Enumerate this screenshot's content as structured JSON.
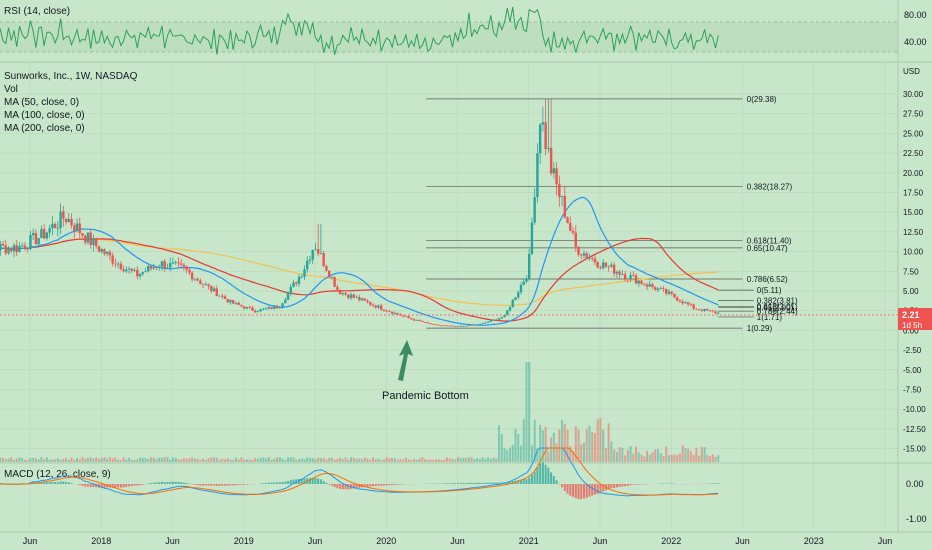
{
  "colors": {
    "background": "#c8e6c9",
    "bull": "#26a69a",
    "bear": "#ef5350",
    "ma50": "#2196f3",
    "ma100": "#e53935",
    "ma200": "#f6c04f",
    "rsi": "#2e9f5b",
    "macd": "#2196f3",
    "signal": "#ff6d00",
    "arrow": "#3d8b63",
    "grid": "#b4d6b6",
    "text": "#131722",
    "fib": "#555555"
  },
  "rsi_panel": {
    "label": "RSI (14, close)",
    "axis_ticks": [
      "80.00",
      "40.00"
    ]
  },
  "main_panel": {
    "legend": [
      "Sunworks, Inc., 1W, NASDAQ",
      "Vol",
      "MA (50, close, 0)",
      "MA (100, close, 0)",
      "MA (200, close, 0)"
    ],
    "currency": "USD",
    "last_price": "2.21",
    "countdown": "1d 5h",
    "annotation": "Pandemic Bottom"
  },
  "macd_panel": {
    "label": "MACD (12, 26, close, 9)",
    "axis_ticks": [
      "0.00",
      "-1.00"
    ]
  },
  "chart_data": {
    "type": "candlestick",
    "symbol": "Sunworks, Inc., 1W, NASDAQ",
    "x_ticks": [
      "Jun",
      "2018",
      "Jun",
      "2019",
      "Jun",
      "2020",
      "Jun",
      "2021",
      "Jun",
      "2022",
      "Jun",
      "2023",
      "Jun"
    ],
    "y_ticks": [
      "30.00",
      "27.50",
      "25.00",
      "22.50",
      "20.00",
      "17.50",
      "15.00",
      "12.50",
      "10.00",
      "7.50",
      "5.00",
      "2.50",
      "0.00",
      "-2.50",
      "-5.00",
      "-7.50",
      "-10.00",
      "-12.50",
      "-15.00"
    ],
    "price_series": [
      {
        "date": "2017-05",
        "close": 10.5
      },
      {
        "date": "2017-07",
        "close": 12.0
      },
      {
        "date": "2017-09",
        "close": 14.5
      },
      {
        "date": "2017-11",
        "close": 11.5
      },
      {
        "date": "2018-01",
        "close": 9.0
      },
      {
        "date": "2018-03",
        "close": 7.0
      },
      {
        "date": "2018-05",
        "close": 8.5
      },
      {
        "date": "2018-07",
        "close": 7.8
      },
      {
        "date": "2018-09",
        "close": 5.5
      },
      {
        "date": "2018-11",
        "close": 3.5
      },
      {
        "date": "2019-01",
        "close": 2.5
      },
      {
        "date": "2019-03",
        "close": 3.0
      },
      {
        "date": "2019-05",
        "close": 7.5
      },
      {
        "date": "2019-06",
        "close": 11.0
      },
      {
        "date": "2019-08",
        "close": 5.0
      },
      {
        "date": "2019-10",
        "close": 3.8
      },
      {
        "date": "2019-12",
        "close": 2.6
      },
      {
        "date": "2020-02",
        "close": 1.5
      },
      {
        "date": "2020-04",
        "close": 0.7
      },
      {
        "date": "2020-06",
        "close": 0.5
      },
      {
        "date": "2020-08",
        "close": 0.8
      },
      {
        "date": "2020-10",
        "close": 1.8
      },
      {
        "date": "2020-12",
        "close": 7.5
      },
      {
        "date": "2021-01",
        "close": 27.5
      },
      {
        "date": "2021-02",
        "close": 20.0
      },
      {
        "date": "2021-03",
        "close": 15.5
      },
      {
        "date": "2021-04",
        "close": 10.5
      },
      {
        "date": "2021-06",
        "close": 8.5
      },
      {
        "date": "2021-08",
        "close": 7.2
      },
      {
        "date": "2021-10",
        "close": 5.8
      },
      {
        "date": "2021-12",
        "close": 4.5
      },
      {
        "date": "2022-02",
        "close": 2.8
      },
      {
        "date": "2022-04",
        "close": 2.21
      }
    ],
    "moving_averages": [
      {
        "name": "MA (50, close, 0)",
        "color": "#2196f3"
      },
      {
        "name": "MA (100, close, 0)",
        "color": "#e53935"
      },
      {
        "name": "MA (200, close, 0)",
        "color": "#f6c04f"
      }
    ],
    "fibonacci": {
      "big": [
        {
          "ratio": "0",
          "value": 29.38,
          "label": "0(29.38)"
        },
        {
          "ratio": "0.382",
          "value": 18.27,
          "label": "0.382(18.27)"
        },
        {
          "ratio": "0.618",
          "value": 11.4,
          "label": "0.618(11.40)"
        },
        {
          "ratio": "0.65",
          "value": 10.47,
          "label": "0.65(10.47)"
        },
        {
          "ratio": "0.786",
          "value": 6.52,
          "label": "0.786(6.52)"
        },
        {
          "ratio": "1",
          "value": 0.29,
          "label": "1(0.29)"
        }
      ],
      "small": [
        {
          "ratio": "0",
          "value": 5.11,
          "label": "0(5.11)"
        },
        {
          "ratio": "0.382",
          "value": 3.81,
          "label": "0.382(3.81)"
        },
        {
          "ratio": "0.618",
          "value": 3.01,
          "label": "0.618(3.01)"
        },
        {
          "ratio": "0.65",
          "value": 2.9,
          "label": "0.65(2.90)"
        },
        {
          "ratio": "0.786",
          "value": 2.44,
          "label": "0.786(2.44)"
        },
        {
          "ratio": "1",
          "value": 1.71,
          "label": "1(1.71)"
        }
      ]
    },
    "last_price": 2.21,
    "ylim": [
      -16,
      31
    ],
    "grid": true
  }
}
